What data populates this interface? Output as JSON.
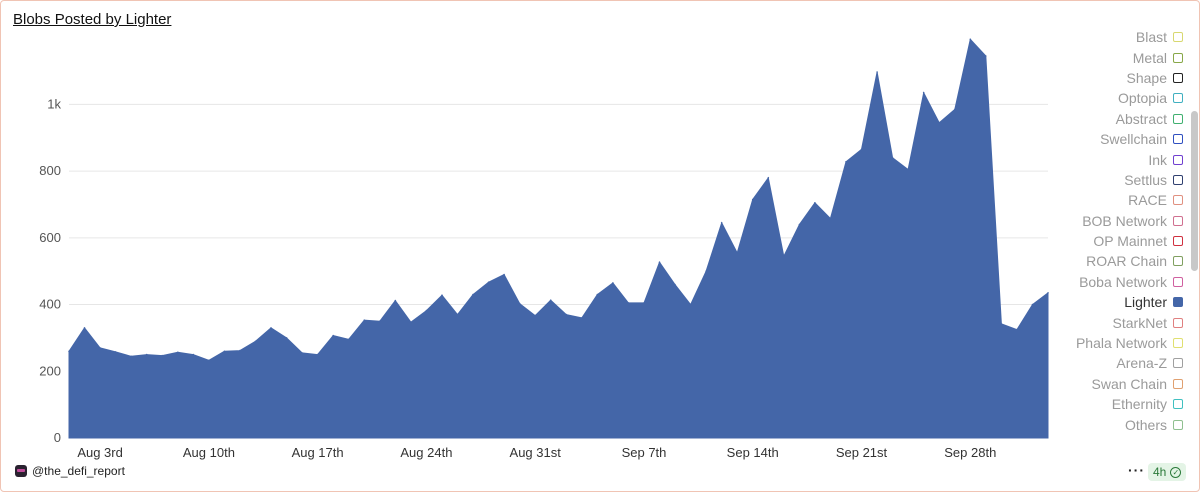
{
  "title": "Blobs Posted by Lighter",
  "footer": {
    "handle": "@the_defi_report",
    "more_label": "···",
    "refresh_label": "4h"
  },
  "legend": {
    "items": [
      {
        "name": "Blast",
        "color": "#d8d870"
      },
      {
        "name": "Metal",
        "color": "#88a848"
      },
      {
        "name": "Shape",
        "color": "#222222"
      },
      {
        "name": "Optopia",
        "color": "#40b0c0"
      },
      {
        "name": "Abstract",
        "color": "#40b070"
      },
      {
        "name": "Swellchain",
        "color": "#3050c0"
      },
      {
        "name": "Ink",
        "color": "#7040d0"
      },
      {
        "name": "Settlus",
        "color": "#304070"
      },
      {
        "name": "RACE",
        "color": "#e09080"
      },
      {
        "name": "BOB Network",
        "color": "#d07090"
      },
      {
        "name": "OP Mainnet",
        "color": "#d03040"
      },
      {
        "name": "ROAR Chain",
        "color": "#80a060"
      },
      {
        "name": "Boba Network",
        "color": "#d060a0"
      },
      {
        "name": "Lighter",
        "color": "#4466a8",
        "active": true
      },
      {
        "name": "StarkNet",
        "color": "#e08080"
      },
      {
        "name": "Phala Network",
        "color": "#e0e070"
      },
      {
        "name": "Arena-Z",
        "color": "#a0a0a0"
      },
      {
        "name": "Swan Chain",
        "color": "#e0a070"
      },
      {
        "name": "Ethernity",
        "color": "#40c0c0"
      },
      {
        "name": "Others",
        "color": "#90c090"
      }
    ]
  },
  "chart_data": {
    "type": "area",
    "title": "Blobs Posted by Lighter",
    "x_start": "Aug 1",
    "x_end": "Oct 3",
    "x_tick_labels": [
      "Aug 3rd",
      "Aug 10th",
      "Aug 17th",
      "Aug 24th",
      "Aug 31st",
      "Sep 7th",
      "Sep 14th",
      "Sep 21st",
      "Sep 28th"
    ],
    "y_tick_labels": [
      "0",
      "200",
      "400",
      "600",
      "800",
      "1k"
    ],
    "y_ticks": [
      0,
      200,
      400,
      600,
      800,
      1000
    ],
    "ylim": [
      0,
      1250
    ],
    "grid": true,
    "series": [
      {
        "name": "Lighter",
        "color": "#4466a8",
        "values": [
          260,
          330,
          270,
          258,
          245,
          250,
          247,
          257,
          250,
          233,
          260,
          262,
          290,
          330,
          300,
          255,
          250,
          307,
          296,
          353,
          350,
          412,
          347,
          382,
          428,
          370,
          430,
          467,
          490,
          403,
          367,
          413,
          370,
          360,
          430,
          465,
          405,
          405,
          527,
          460,
          400,
          500,
          645,
          555,
          715,
          780,
          545,
          640,
          705,
          658,
          828,
          865,
          1097,
          840,
          805,
          1035,
          945,
          985,
          1195,
          1145,
          342,
          325,
          400,
          435
        ]
      }
    ]
  }
}
